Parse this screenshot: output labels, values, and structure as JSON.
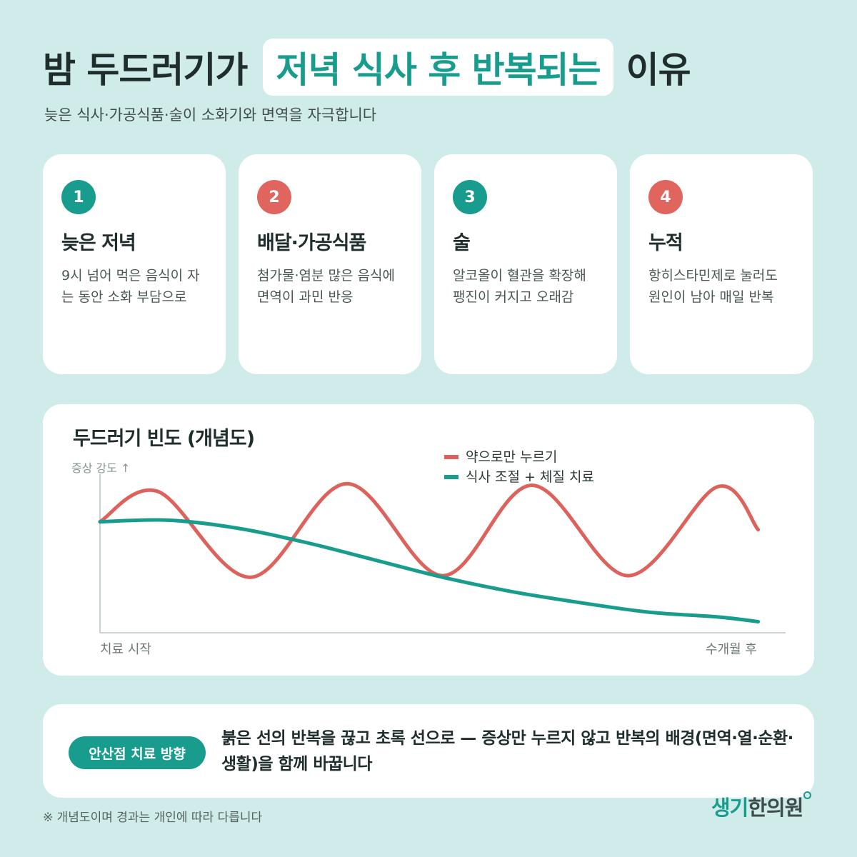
{
  "header": {
    "title_pre": "밤 두드러기가",
    "title_highlight": "저녁 식사 후 반복되는",
    "title_post": "이유",
    "subtitle": "늦은 식사·가공식품·술이 소화기와 면역을 자극합니다"
  },
  "cards": [
    {
      "num": "1",
      "title": "늦은 저녁",
      "desc": "9시 넘어 먹은 음식이 자는 동안 소화 부담으로",
      "badge_color": "#179c8d"
    },
    {
      "num": "2",
      "title": "배달·가공식품",
      "desc": "첨가물·염분 많은 음식에 면역이 과민 반응",
      "badge_color": "#e0655e"
    },
    {
      "num": "3",
      "title": "술",
      "desc": "알코올이 혈관을 확장해 팽진이 커지고 오래감",
      "badge_color": "#179c8d"
    },
    {
      "num": "4",
      "title": "누적",
      "desc": "항히스타민제로 눌러도 원인이 남아 매일 반복",
      "badge_color": "#e0655e"
    }
  ],
  "chart_data": {
    "type": "line",
    "title": "두드러기 빈도 (개념도)",
    "ylabel": "증상 강도 ↑",
    "x_start_label": "치료 시작",
    "x_end_label": "수개월 후",
    "ylim": [
      0,
      10
    ],
    "series": [
      {
        "name": "약으로만 누르기",
        "color": "#dd625b",
        "points": [
          [
            0,
            7.0
          ],
          [
            0.085,
            8.9
          ],
          [
            0.22,
            3.5
          ],
          [
            0.36,
            9.4
          ],
          [
            0.5,
            3.6
          ],
          [
            0.63,
            9.3
          ],
          [
            0.77,
            3.6
          ],
          [
            0.9,
            9.2
          ],
          [
            0.96,
            6.5
          ]
        ]
      },
      {
        "name": "식사 조절 + 체질 치료",
        "color": "#179c8d",
        "points": [
          [
            0,
            7.0
          ],
          [
            0.1,
            7.1
          ],
          [
            0.2,
            6.6
          ],
          [
            0.3,
            5.7
          ],
          [
            0.4,
            4.6
          ],
          [
            0.5,
            3.5
          ],
          [
            0.6,
            2.6
          ],
          [
            0.7,
            1.9
          ],
          [
            0.8,
            1.3
          ],
          [
            0.9,
            1.0
          ],
          [
            0.96,
            0.7
          ]
        ]
      }
    ]
  },
  "bottom": {
    "pill": "안산점 치료 방향",
    "text": "붉은 선의 반복을 끊고 초록 선으로 — 증상만 누르지 않고 반복의 배경(면역·열·순환·생활)을 함께 바꿉니다"
  },
  "footnote": "※ 개념도이며 경과는 개인에 따라 다릅니다",
  "logo": {
    "part1": "생기",
    "part2": "한의원"
  },
  "colors": {
    "accent": "#179c8d",
    "red": "#e0655e",
    "background": "#cfecea"
  }
}
